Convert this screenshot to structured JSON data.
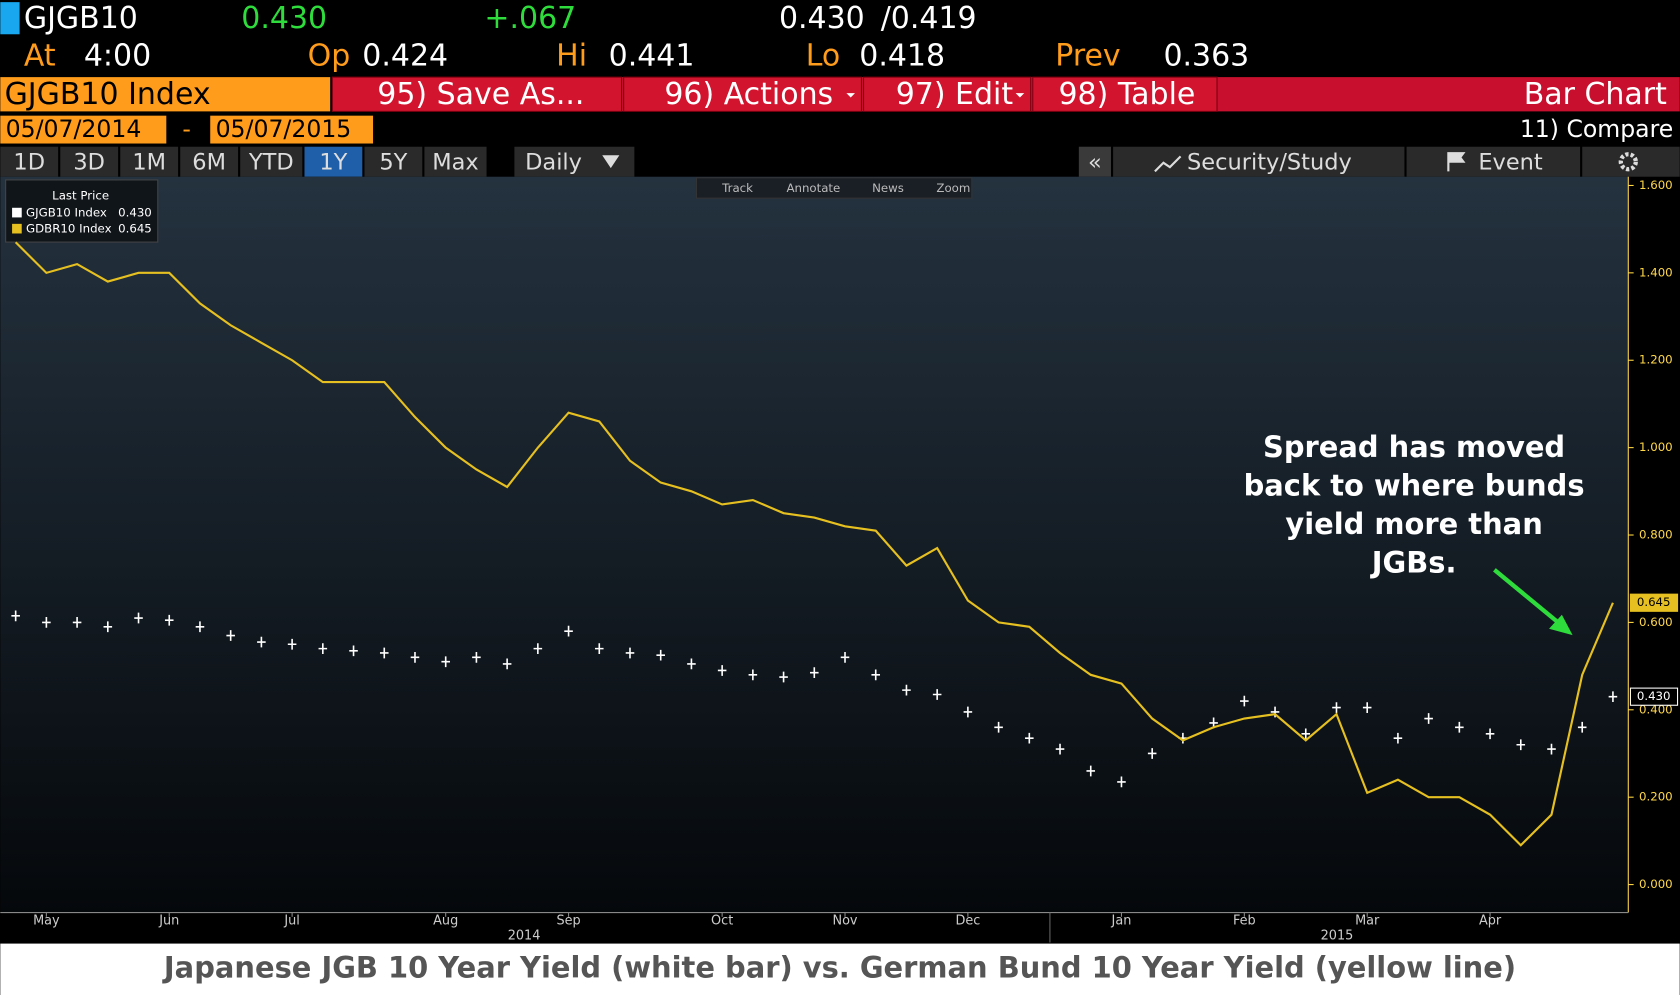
{
  "header": {
    "ticker": "GJGB10",
    "last": "0.430",
    "change": "+.067",
    "bid": "0.430",
    "ask": "/0.419",
    "time_label": "At",
    "time": "4:00",
    "open_label": "Op",
    "open": "0.424",
    "high_label": "Hi",
    "high": "0.441",
    "low_label": "Lo",
    "low": "0.418",
    "prev_label": "Prev",
    "prev": "0.363"
  },
  "toolbar": {
    "security": "GJGB10 Index",
    "buttons": [
      "95) Save As...",
      "96) Actions",
      "97) Edit",
      "98) Table"
    ],
    "view": "Bar Chart",
    "start_date": "05/07/2014",
    "date_sep": "-",
    "end_date": "05/07/2015",
    "compare": "11) Compare",
    "periods": [
      "1D",
      "3D",
      "1M",
      "6M",
      "YTD",
      "1Y",
      "5Y",
      "Max"
    ],
    "active_period_index": 5,
    "frequency": "Daily",
    "collapse": "«",
    "security_study": "Security/Study",
    "event": "Event",
    "tools": [
      "Track",
      "Annotate",
      "News",
      "Zoom"
    ]
  },
  "chart_data": {
    "type": "line",
    "legend_title": "Last Price",
    "categories": [
      null,
      "May",
      null,
      null,
      null,
      "Jun",
      null,
      null,
      null,
      "Jul",
      null,
      null,
      null,
      null,
      "Aug",
      null,
      null,
      null,
      "Sep",
      null,
      null,
      null,
      null,
      "Oct",
      null,
      null,
      null,
      "Nov",
      null,
      null,
      null,
      "Dec",
      null,
      null,
      null,
      null,
      "Jan",
      null,
      null,
      null,
      "Feb",
      null,
      null,
      null,
      "Mar",
      null,
      null,
      null,
      "Apr",
      null,
      null,
      null,
      null
    ],
    "x_year_labels": [
      "2014",
      "2015"
    ],
    "series": [
      {
        "name": "GJGB10 Index",
        "last_label": "0.430",
        "color": "#ffffff",
        "style": "bar",
        "values": [
          0.615,
          0.6,
          0.6,
          0.59,
          0.61,
          0.605,
          0.59,
          0.57,
          0.555,
          0.55,
          0.54,
          0.535,
          0.53,
          0.52,
          0.51,
          0.52,
          0.505,
          0.54,
          0.58,
          0.54,
          0.53,
          0.525,
          0.505,
          0.49,
          0.48,
          0.475,
          0.485,
          0.52,
          0.48,
          0.445,
          0.435,
          0.395,
          0.36,
          0.335,
          0.31,
          0.26,
          0.235,
          0.3,
          0.335,
          0.37,
          0.42,
          0.395,
          0.345,
          0.405,
          0.405,
          0.335,
          0.38,
          0.36,
          0.345,
          0.32,
          0.31,
          0.36,
          0.43
        ]
      },
      {
        "name": "GDBR10 Index",
        "last_label": "0.645",
        "color": "#e6c020",
        "style": "line",
        "values": [
          1.47,
          1.4,
          1.42,
          1.38,
          1.4,
          1.4,
          1.33,
          1.28,
          1.24,
          1.2,
          1.15,
          1.15,
          1.15,
          1.07,
          1.0,
          0.95,
          0.91,
          1.0,
          1.08,
          1.06,
          0.97,
          0.92,
          0.9,
          0.87,
          0.88,
          0.85,
          0.84,
          0.82,
          0.81,
          0.73,
          0.77,
          0.65,
          0.6,
          0.59,
          0.53,
          0.48,
          0.46,
          0.38,
          0.33,
          0.36,
          0.38,
          0.39,
          0.33,
          0.39,
          0.21,
          0.24,
          0.2,
          0.2,
          0.16,
          0.09,
          0.16,
          0.48,
          0.645
        ]
      }
    ],
    "ylim": [
      -0.064,
      1.62
    ],
    "yticks": [
      {
        "value": 0,
        "label": "0.000"
      },
      {
        "value": 0.2,
        "label": "0.200"
      },
      {
        "value": 0.4,
        "label": "0.400"
      },
      {
        "value": 0.6,
        "label": "0.600"
      },
      {
        "value": 0.8,
        "label": "0.800"
      },
      {
        "value": 1,
        "label": "1.000"
      },
      {
        "value": 1.2,
        "label": "1.200"
      },
      {
        "value": 1.4,
        "label": "1.400"
      },
      {
        "value": 1.6,
        "label": "1.600"
      }
    ],
    "annotation": [
      "Spread has moved",
      "back to where bunds",
      "yield more than",
      "JGBs."
    ]
  },
  "caption": "Japanese JGB 10 Year Yield (white bar) vs. German Bund 10 Year Yield (yellow line)"
}
